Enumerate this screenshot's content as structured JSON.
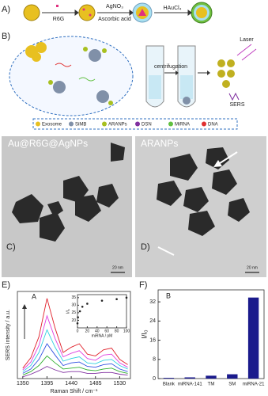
{
  "figure": {
    "panel_a": {
      "label": "A)",
      "steps": [
        "R6G",
        "AgNO₃",
        "Ascorbic acid",
        "HAuCl₄"
      ]
    },
    "panel_b": {
      "label": "B)",
      "laser": "Laser",
      "centrifugation": "centrifugation",
      "sers": "SERS",
      "legend": [
        "Exosome",
        "SiMB",
        "ARANPs",
        "DSN",
        "MiRNA",
        "DNA"
      ]
    },
    "panel_c": {
      "label": "C)",
      "title": "Au@R6G@AgNPs",
      "scale": "20 nm"
    },
    "panel_d": {
      "label": "D)",
      "title": "ARANPs",
      "scale": "20 nm"
    },
    "panel_e": {
      "label": "E)"
    },
    "panel_f": {
      "label": "F)"
    }
  },
  "chart_data": [
    {
      "type": "line",
      "label": "A",
      "xlabel": "Raman Shift / cm⁻¹",
      "ylabel": "SERS intensity / a.u.",
      "x": [
        1350,
        1365,
        1380,
        1395,
        1410,
        1425,
        1440,
        1455,
        1470,
        1485,
        1500,
        1515,
        1530,
        1545
      ],
      "xlim": [
        1340,
        1550
      ],
      "xticks": [
        1350,
        1395,
        1440,
        1485,
        1530
      ],
      "ylim": [
        0,
        100
      ],
      "series": [
        {
          "color": "#e0202a",
          "values": [
            12,
            24,
            48,
            92,
            58,
            30,
            36,
            40,
            28,
            26,
            33,
            35,
            22,
            16
          ]
        },
        {
          "color": "#e040e0",
          "values": [
            10,
            19,
            38,
            72,
            46,
            25,
            29,
            32,
            23,
            21,
            27,
            28,
            18,
            13
          ]
        },
        {
          "color": "#30d0e0",
          "values": [
            8,
            15,
            30,
            56,
            36,
            20,
            23,
            25,
            18,
            17,
            21,
            22,
            15,
            11
          ]
        },
        {
          "color": "#3050e0",
          "values": [
            6,
            11,
            22,
            40,
            27,
            15,
            18,
            19,
            14,
            13,
            16,
            17,
            11,
            8
          ]
        },
        {
          "color": "#30b030",
          "values": [
            4,
            8,
            15,
            26,
            18,
            11,
            12,
            13,
            10,
            9,
            11,
            12,
            8,
            6
          ]
        },
        {
          "color": "#8030a0",
          "values": [
            2,
            5,
            9,
            14,
            10,
            7,
            8,
            8,
            6,
            6,
            7,
            7,
            5,
            4
          ]
        }
      ],
      "inset": {
        "type": "scatter",
        "xlabel": "miRNA / pM",
        "ylabel": "I/I₀",
        "x": [
          0,
          1,
          5,
          10,
          20,
          50,
          80,
          100
        ],
        "values": [
          18,
          22,
          26,
          29,
          31,
          33,
          34,
          35
        ],
        "xlim": [
          0,
          100
        ],
        "ylim": [
          15,
          37
        ],
        "xticks": [
          0,
          20,
          40,
          60,
          80,
          100
        ],
        "yticks": [
          20,
          25,
          30,
          35
        ]
      }
    },
    {
      "type": "bar",
      "label": "B",
      "ylabel": "I/I₀",
      "categories": [
        "Blank",
        "miRNA-141",
        "TM",
        "SM",
        "miRNA-21"
      ],
      "values": [
        0.3,
        0.5,
        1.2,
        1.8,
        33.8
      ],
      "color": "#1a1a8c",
      "ylim": [
        0,
        37
      ],
      "yticks": [
        0,
        8,
        16,
        24,
        32
      ]
    }
  ]
}
